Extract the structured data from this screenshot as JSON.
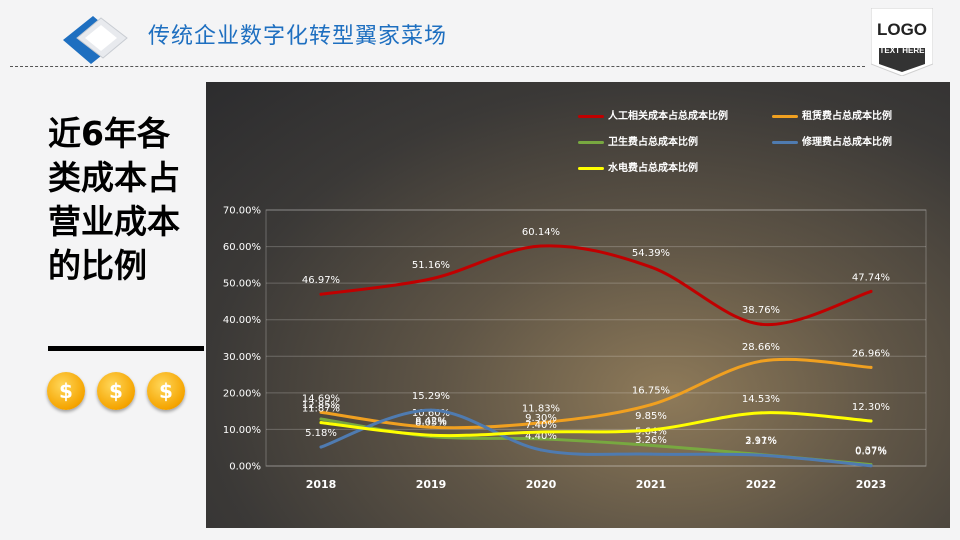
{
  "header": {
    "title": "传统企业数字化转型翼家菜场",
    "logo_text": "LOGO",
    "logo_sub": "TEXT HERE"
  },
  "sidebar": {
    "heading": "近6年各类成本占营业成本的比例",
    "coins": [
      "$",
      "$",
      "$"
    ]
  },
  "colors": {
    "title_blue": "#1e6fc0",
    "coin_gold": "#f5a400"
  },
  "chart_data": {
    "type": "line",
    "x": [
      "2018",
      "2019",
      "2020",
      "2021",
      "2022",
      "2023"
    ],
    "ylim": [
      0,
      70
    ],
    "yticks": [
      "0.00%",
      "10.00%",
      "20.00%",
      "30.00%",
      "40.00%",
      "50.00%",
      "60.00%",
      "70.00%"
    ],
    "grid": true,
    "legend_position": "top-right",
    "series": [
      {
        "name": "人工相关成本占总成本比例",
        "color": "#c00000",
        "values": [
          46.97,
          51.16,
          60.14,
          54.39,
          38.76,
          47.74
        ],
        "labels": [
          "46.97%",
          "51.16%",
          "60.14%",
          "54.39%",
          "38.76%",
          "47.74%"
        ]
      },
      {
        "name": "租赁费占总成本比例",
        "color": "#f0a020",
        "values": [
          14.69,
          10.6,
          11.83,
          16.75,
          28.66,
          26.96
        ],
        "labels": [
          "14.69%",
          "10.60%",
          "11.83%",
          "16.75%",
          "28.66%",
          "26.96%"
        ]
      },
      {
        "name": "卫生费占总成本比例",
        "color": "#78a840",
        "values": [
          12.85,
          8.05,
          7.4,
          5.64,
          3.11,
          0.37
        ],
        "labels": [
          "12.85%",
          "8.05%",
          "7.40%",
          "5.64%",
          "3.11%",
          "0.37%"
        ]
      },
      {
        "name": "修理费占总成本比例",
        "color": "#4f7bb0",
        "values": [
          5.18,
          15.29,
          4.4,
          3.26,
          2.97,
          0.07
        ],
        "labels": [
          "5.18%",
          "15.29%",
          "4.40%",
          "3.26%",
          "2.97%",
          "0.07%"
        ]
      },
      {
        "name": "水电费占总成本比例",
        "color": "#ffff00",
        "values": [
          11.87,
          8.42,
          9.3,
          9.85,
          14.53,
          12.3
        ],
        "labels": [
          "11.87%",
          "8.42%",
          "9.30%",
          "9.85%",
          "14.53%",
          "12.30%"
        ]
      }
    ]
  }
}
